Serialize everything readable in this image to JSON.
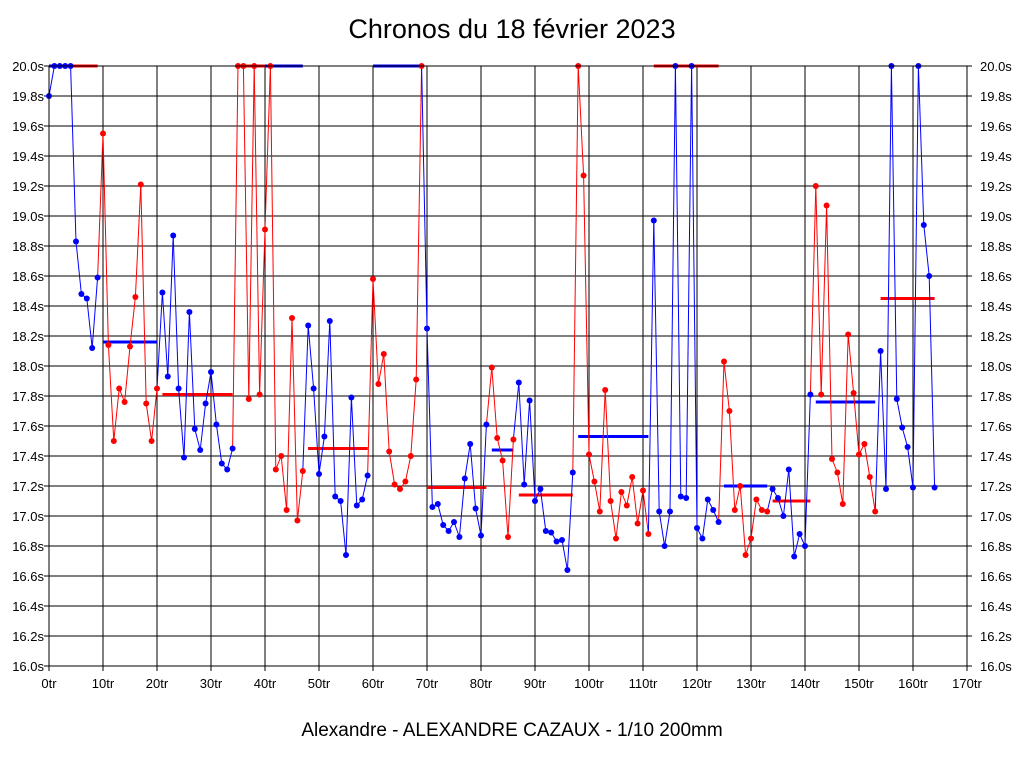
{
  "chart_data": {
    "type": "line",
    "title": "Chronos du 18 février 2023",
    "footer": "Alexandre - ALEXANDRE CAZAUX - 1/10 200mm",
    "x_range": [
      0,
      170
    ],
    "x_ticks": [
      0,
      10,
      20,
      30,
      40,
      50,
      60,
      70,
      80,
      90,
      100,
      110,
      120,
      130,
      140,
      150,
      160,
      170
    ],
    "x_tick_suffix": "tr",
    "y_range": [
      16.0,
      20.0
    ],
    "y_ticks": [
      16.0,
      16.2,
      16.4,
      16.6,
      16.8,
      17.0,
      17.2,
      17.4,
      17.6,
      17.8,
      18.0,
      18.2,
      18.4,
      18.6,
      18.8,
      19.0,
      19.2,
      19.4,
      19.6,
      19.8,
      20.0
    ],
    "y_tick_suffix": "s",
    "grid": true,
    "colors": {
      "blue": "#0000ff",
      "red": "#ff0000",
      "axis": "#000000",
      "grid": "#000000"
    },
    "segments": [
      {
        "color": "blue",
        "avg": 20.0,
        "avg_from": 0,
        "avg_to": 4,
        "points": [
          [
            0,
            19.8
          ],
          [
            1,
            20.0
          ],
          [
            2,
            20.0
          ],
          [
            3,
            20.0
          ],
          [
            4,
            20.0
          ]
        ]
      },
      {
        "color": "red",
        "avg": 20.0,
        "avg_from": 4,
        "avg_to": 9,
        "points": []
      },
      {
        "color": "blue",
        "avg": 18.16,
        "avg_from": 10,
        "avg_to": 20,
        "points": [
          [
            5,
            18.83
          ],
          [
            6,
            18.48
          ],
          [
            7,
            18.45
          ],
          [
            8,
            18.12
          ],
          [
            9,
            18.59
          ]
        ]
      },
      {
        "color": "red",
        "avg": 17.81,
        "avg_from": 21,
        "avg_to": 34,
        "points": [
          [
            10,
            19.55
          ],
          [
            11,
            18.14
          ],
          [
            12,
            17.5
          ],
          [
            13,
            17.85
          ],
          [
            14,
            17.76
          ],
          [
            15,
            18.13
          ],
          [
            16,
            18.46
          ],
          [
            17,
            19.21
          ],
          [
            18,
            17.75
          ],
          [
            19,
            17.5
          ],
          [
            20,
            17.85
          ]
        ]
      },
      {
        "color": "blue",
        "avg": 20.0,
        "avg_from": 35,
        "avg_to": 47,
        "points": [
          [
            21,
            18.49
          ],
          [
            22,
            17.93
          ],
          [
            23,
            18.87
          ],
          [
            24,
            17.85
          ],
          [
            25,
            17.39
          ],
          [
            26,
            18.36
          ],
          [
            27,
            17.58
          ],
          [
            28,
            17.44
          ],
          [
            29,
            17.75
          ],
          [
            30,
            17.96
          ],
          [
            31,
            17.61
          ],
          [
            32,
            17.35
          ],
          [
            33,
            17.31
          ],
          [
            34,
            17.45
          ]
        ]
      },
      {
        "color": "red",
        "avg": 20.0,
        "avg_from": 35,
        "avg_to": 40,
        "points": [
          [
            35,
            20.0
          ],
          [
            36,
            20.0
          ],
          [
            37,
            17.78
          ],
          [
            38,
            20.0
          ],
          [
            39,
            17.81
          ],
          [
            40,
            18.91
          ],
          [
            41,
            20.0
          ],
          [
            42,
            17.31
          ],
          [
            43,
            17.4
          ],
          [
            44,
            17.04
          ],
          [
            45,
            18.32
          ],
          [
            46,
            16.97
          ],
          [
            47,
            17.3
          ]
        ]
      },
      {
        "color": "blue",
        "avg": 17.45,
        "avg_from": 48,
        "avg_to": 59,
        "points": [
          [
            48,
            18.27
          ],
          [
            49,
            17.85
          ],
          [
            50,
            17.28
          ],
          [
            51,
            17.53
          ],
          [
            52,
            18.3
          ],
          [
            53,
            17.13
          ],
          [
            54,
            17.1
          ],
          [
            55,
            16.74
          ],
          [
            56,
            17.79
          ],
          [
            57,
            17.07
          ],
          [
            58,
            17.11
          ],
          [
            59,
            17.27
          ]
        ]
      },
      {
        "color": "red",
        "avg": 17.45,
        "avg_from": 48,
        "avg_to": 59,
        "points": [
          [
            60,
            18.58
          ],
          [
            61,
            17.88
          ],
          [
            62,
            18.08
          ],
          [
            63,
            17.43
          ],
          [
            64,
            17.21
          ],
          [
            65,
            17.18
          ],
          [
            66,
            17.23
          ],
          [
            67,
            17.4
          ],
          [
            68,
            17.91
          ],
          [
            69,
            20.0
          ]
        ]
      },
      {
        "color": "blue",
        "avg": 20.0,
        "avg_from": 60,
        "avg_to": 69,
        "points": [
          [
            70,
            18.25
          ],
          [
            71,
            17.06
          ],
          [
            72,
            17.08
          ],
          [
            73,
            16.94
          ],
          [
            74,
            16.9
          ],
          [
            75,
            16.96
          ],
          [
            76,
            16.86
          ],
          [
            77,
            17.25
          ],
          [
            78,
            17.48
          ],
          [
            79,
            17.05
          ],
          [
            80,
            16.87
          ],
          [
            81,
            17.61
          ]
        ]
      },
      {
        "color": "red",
        "avg": 17.19,
        "avg_from": 70,
        "avg_to": 81,
        "points": [
          [
            82,
            17.99
          ],
          [
            83,
            17.52
          ],
          [
            84,
            17.37
          ],
          [
            85,
            16.86
          ],
          [
            86,
            17.51
          ]
        ]
      },
      {
        "color": "blue",
        "avg": 17.44,
        "avg_from": 82,
        "avg_to": 86,
        "points": [
          [
            87,
            17.89
          ],
          [
            88,
            17.21
          ],
          [
            89,
            17.77
          ],
          [
            90,
            17.1
          ],
          [
            91,
            17.18
          ],
          [
            92,
            16.9
          ],
          [
            93,
            16.89
          ],
          [
            94,
            16.83
          ],
          [
            95,
            16.84
          ],
          [
            96,
            16.64
          ],
          [
            97,
            17.29
          ]
        ]
      },
      {
        "color": "red",
        "avg": 17.14,
        "avg_from": 87,
        "avg_to": 97,
        "points": [
          [
            98,
            20.0
          ],
          [
            99,
            19.27
          ],
          [
            100,
            17.41
          ],
          [
            101,
            17.23
          ],
          [
            102,
            17.03
          ],
          [
            103,
            17.84
          ],
          [
            104,
            17.1
          ],
          [
            105,
            16.85
          ],
          [
            106,
            17.16
          ],
          [
            107,
            17.07
          ],
          [
            108,
            17.26
          ],
          [
            109,
            16.95
          ],
          [
            110,
            17.17
          ],
          [
            111,
            16.88
          ]
        ]
      },
      {
        "color": "blue",
        "avg": 17.53,
        "avg_from": 98,
        "avg_to": 111,
        "points": [
          [
            112,
            18.97
          ],
          [
            113,
            17.03
          ],
          [
            114,
            16.8
          ],
          [
            115,
            17.03
          ],
          [
            116,
            20.0
          ],
          [
            117,
            17.13
          ],
          [
            118,
            17.12
          ],
          [
            119,
            20.0
          ],
          [
            120,
            16.92
          ],
          [
            121,
            16.85
          ],
          [
            122,
            17.11
          ],
          [
            123,
            17.04
          ],
          [
            124,
            16.96
          ]
        ]
      },
      {
        "color": "red",
        "avg": 20.0,
        "avg_from": 112,
        "avg_to": 124,
        "points": [
          [
            125,
            18.03
          ],
          [
            126,
            17.7
          ],
          [
            127,
            17.04
          ],
          [
            128,
            17.2
          ],
          [
            129,
            16.74
          ],
          [
            130,
            16.85
          ],
          [
            131,
            17.11
          ],
          [
            132,
            17.04
          ],
          [
            133,
            17.03
          ]
        ]
      },
      {
        "color": "blue",
        "avg": 17.2,
        "avg_from": 125,
        "avg_to": 133,
        "points": [
          [
            134,
            17.18
          ],
          [
            135,
            17.12
          ],
          [
            136,
            17.0
          ],
          [
            137,
            17.31
          ],
          [
            138,
            16.73
          ],
          [
            139,
            16.88
          ],
          [
            140,
            16.8
          ],
          [
            141,
            17.81
          ]
        ]
      },
      {
        "color": "red",
        "avg": 17.1,
        "avg_from": 134,
        "avg_to": 141,
        "points": [
          [
            142,
            19.2
          ],
          [
            143,
            17.81
          ],
          [
            144,
            19.07
          ],
          [
            145,
            17.38
          ],
          [
            146,
            17.29
          ],
          [
            147,
            17.08
          ],
          [
            148,
            18.21
          ],
          [
            149,
            17.82
          ],
          [
            150,
            17.41
          ],
          [
            151,
            17.48
          ],
          [
            152,
            17.26
          ],
          [
            153,
            17.03
          ]
        ]
      },
      {
        "color": "blue",
        "avg": 17.76,
        "avg_from": 142,
        "avg_to": 153,
        "points": [
          [
            154,
            18.1
          ],
          [
            155,
            17.18
          ],
          [
            156,
            20.0
          ],
          [
            157,
            17.78
          ],
          [
            158,
            17.59
          ],
          [
            159,
            17.46
          ],
          [
            160,
            17.19
          ],
          [
            161,
            20.0
          ],
          [
            162,
            18.94
          ],
          [
            163,
            18.6
          ],
          [
            164,
            17.19
          ]
        ]
      },
      {
        "color": "red",
        "avg": 18.45,
        "avg_from": 154,
        "avg_to": 164,
        "points": []
      }
    ]
  }
}
